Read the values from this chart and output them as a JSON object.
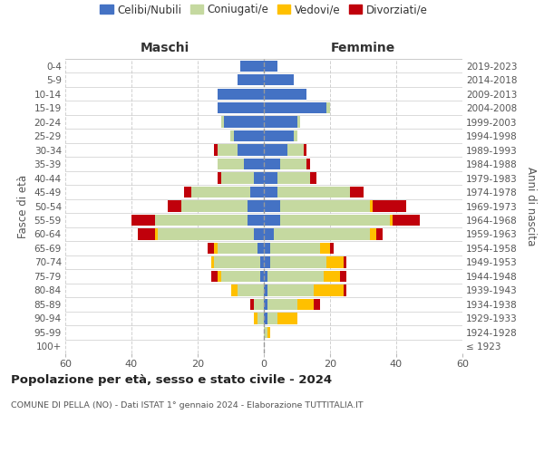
{
  "age_groups": [
    "100+",
    "95-99",
    "90-94",
    "85-89",
    "80-84",
    "75-79",
    "70-74",
    "65-69",
    "60-64",
    "55-59",
    "50-54",
    "45-49",
    "40-44",
    "35-39",
    "30-34",
    "25-29",
    "20-24",
    "15-19",
    "10-14",
    "5-9",
    "0-4"
  ],
  "birth_years": [
    "≤ 1923",
    "1924-1928",
    "1929-1933",
    "1934-1938",
    "1939-1943",
    "1944-1948",
    "1949-1953",
    "1954-1958",
    "1959-1963",
    "1964-1968",
    "1969-1973",
    "1974-1978",
    "1979-1983",
    "1984-1988",
    "1989-1993",
    "1994-1998",
    "1999-2003",
    "2004-2008",
    "2009-2013",
    "2014-2018",
    "2019-2023"
  ],
  "colors": {
    "celibi": "#4472c4",
    "coniugati": "#c5d9a0",
    "vedovi": "#ffc000",
    "divorziati": "#c0000b"
  },
  "males": {
    "celibi": [
      0,
      0,
      0,
      0,
      0,
      1,
      1,
      2,
      3,
      5,
      5,
      4,
      3,
      6,
      8,
      9,
      12,
      14,
      14,
      8,
      7
    ],
    "coniugati": [
      0,
      0,
      2,
      3,
      8,
      12,
      14,
      12,
      29,
      28,
      20,
      18,
      10,
      8,
      6,
      1,
      1,
      0,
      0,
      0,
      0
    ],
    "vedovi": [
      0,
      0,
      1,
      0,
      2,
      1,
      1,
      1,
      1,
      0,
      0,
      0,
      0,
      0,
      0,
      0,
      0,
      0,
      0,
      0,
      0
    ],
    "divorziati": [
      0,
      0,
      0,
      1,
      0,
      2,
      0,
      2,
      5,
      7,
      4,
      2,
      1,
      0,
      1,
      0,
      0,
      0,
      0,
      0,
      0
    ]
  },
  "females": {
    "celibi": [
      0,
      0,
      1,
      1,
      1,
      1,
      2,
      2,
      3,
      5,
      5,
      4,
      4,
      5,
      7,
      9,
      10,
      19,
      13,
      9,
      4
    ],
    "coniugati": [
      0,
      1,
      3,
      9,
      14,
      17,
      17,
      15,
      29,
      33,
      27,
      22,
      10,
      8,
      5,
      1,
      1,
      1,
      0,
      0,
      0
    ],
    "vedovi": [
      0,
      1,
      6,
      5,
      9,
      5,
      5,
      3,
      2,
      1,
      1,
      0,
      0,
      0,
      0,
      0,
      0,
      0,
      0,
      0,
      0
    ],
    "divorziati": [
      0,
      0,
      0,
      2,
      1,
      2,
      1,
      1,
      2,
      8,
      10,
      4,
      2,
      1,
      1,
      0,
      0,
      0,
      0,
      0,
      0
    ]
  },
  "title": "Popolazione per età, sesso e stato civile - 2024",
  "subtitle": "COMUNE DI PELLA (NO) - Dati ISTAT 1° gennaio 2024 - Elaborazione TUTTITALIA.IT",
  "xlabel_left": "Maschi",
  "xlabel_right": "Femmine",
  "ylabel_left": "Fasce di età",
  "ylabel_right": "Anni di nascita",
  "xlim": 60,
  "bg_color": "#ffffff",
  "grid_color": "#cccccc",
  "legend_labels": [
    "Celibi/Nubili",
    "Coniugati/e",
    "Vedovi/e",
    "Divorziati/e"
  ]
}
